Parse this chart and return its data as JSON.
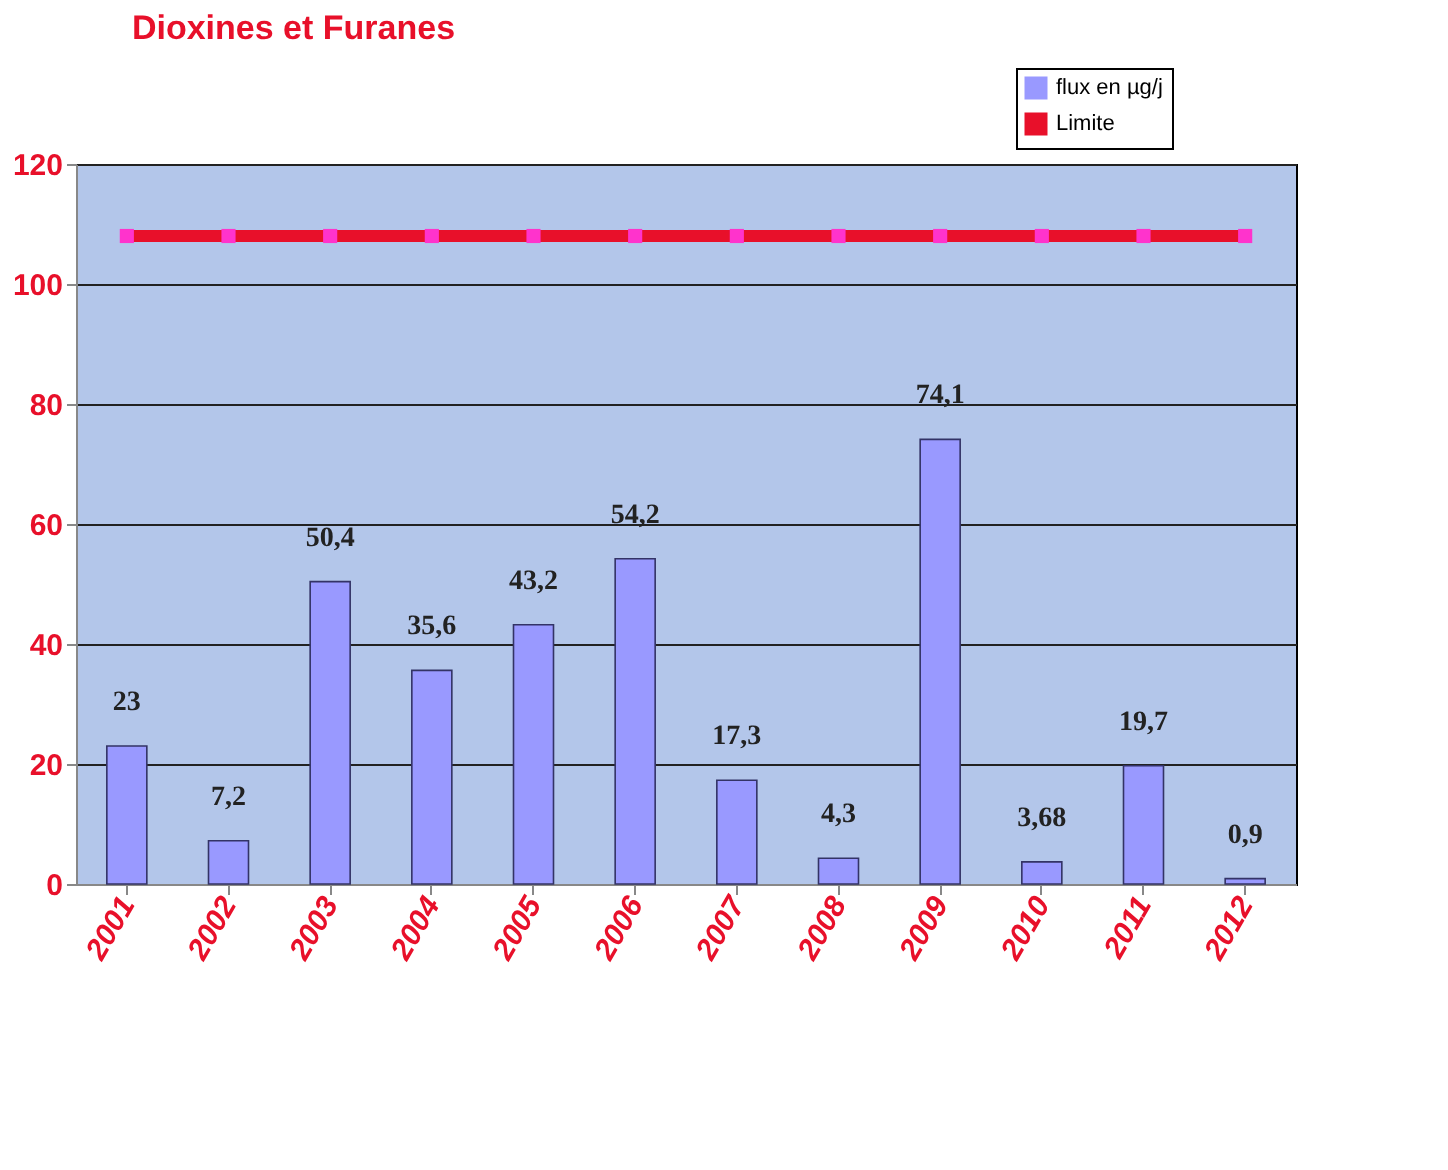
{
  "chart_data": {
    "type": "bar",
    "title": "Dioxines et Furanes",
    "categories": [
      "2001",
      "2002",
      "2003",
      "2004",
      "2005",
      "2006",
      "2007",
      "2008",
      "2009",
      "2010",
      "2011",
      "2012"
    ],
    "series": [
      {
        "name": "flux en µg/j",
        "color": "#9999ff",
        "values": [
          23,
          7.2,
          50.4,
          35.6,
          43.2,
          54.2,
          17.3,
          4.3,
          74.1,
          3.68,
          19.7,
          0.9
        ],
        "value_labels": [
          "23",
          "7,2",
          "50,4",
          "35,6",
          "43,2",
          "54,2",
          "17,3",
          "4,3",
          "74,1",
          "3,68",
          "19,7",
          "0,9"
        ]
      },
      {
        "name": "Limite",
        "type": "line",
        "color": "#e8102a",
        "marker": "square",
        "values": [
          108,
          108,
          108,
          108,
          108,
          108,
          108,
          108,
          108,
          108,
          108,
          108
        ]
      }
    ],
    "ylim": [
      0,
      120
    ],
    "yticks": [
      0,
      20,
      40,
      60,
      80,
      100,
      120
    ],
    "grid": "y",
    "legend": "top right"
  }
}
